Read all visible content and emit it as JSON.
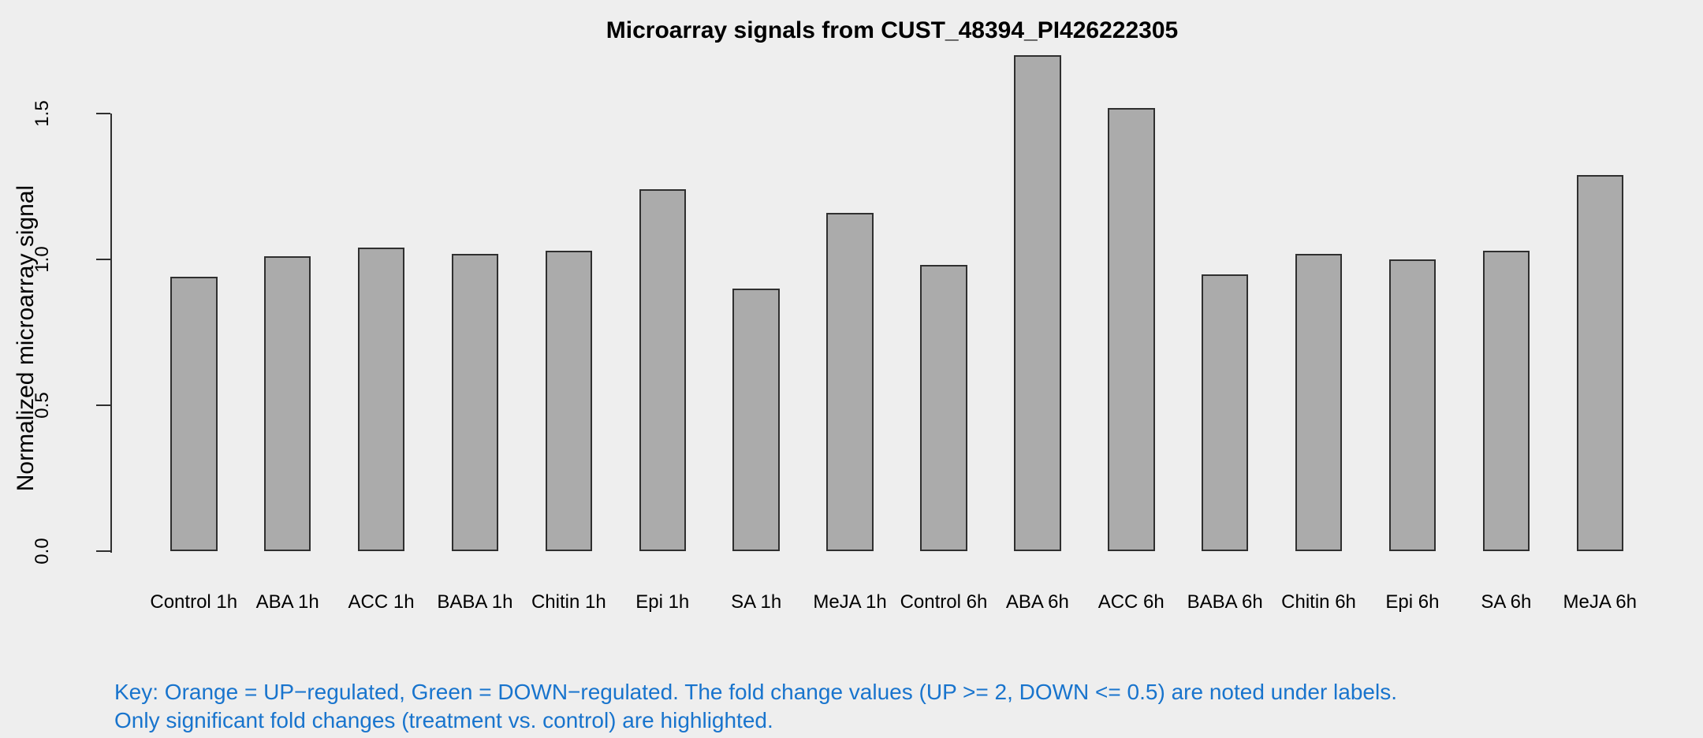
{
  "page": {
    "background": "#EEEEEE"
  },
  "title": "Microarray signals from CUST_48394_PI426222305",
  "key_note": {
    "line1": "Key: Orange = UP−regulated, Green = DOWN−regulated. The fold change values (UP >= 2, DOWN <= 0.5) are noted under labels.",
    "line2": "Only significant fold changes (treatment vs. control) are highlighted.",
    "color": "#1874CD"
  },
  "chart_data": {
    "type": "bar",
    "title": "Microarray signals from CUST_48394_PI426222305",
    "xlabel": "",
    "ylabel": "Normalized microarray signal",
    "categories": [
      "Control 1h",
      "ABA 1h",
      "ACC 1h",
      "BABA 1h",
      "Chitin 1h",
      "Epi 1h",
      "SA 1h",
      "MeJA 1h",
      "Control 6h",
      "ABA 6h",
      "ACC 6h",
      "BABA 6h",
      "Chitin 6h",
      "Epi 6h",
      "SA 6h",
      "MeJA 6h"
    ],
    "values": [
      0.94,
      1.01,
      1.04,
      1.02,
      1.03,
      1.24,
      0.9,
      1.16,
      0.98,
      1.7,
      1.52,
      0.95,
      1.02,
      1.0,
      1.03,
      1.29
    ],
    "ytick_labels": [
      "0.0",
      "0.5",
      "1.0",
      "1.5"
    ],
    "ytick_values": [
      0,
      0.5,
      1.0,
      1.5
    ],
    "ylim": [
      0,
      1.75
    ],
    "grid": false,
    "legend": "none",
    "bar_fill": "#ABABAB",
    "bar_border": "#2F2F2F",
    "axis_color": "#2F2F2F",
    "text_color": "#000000"
  }
}
